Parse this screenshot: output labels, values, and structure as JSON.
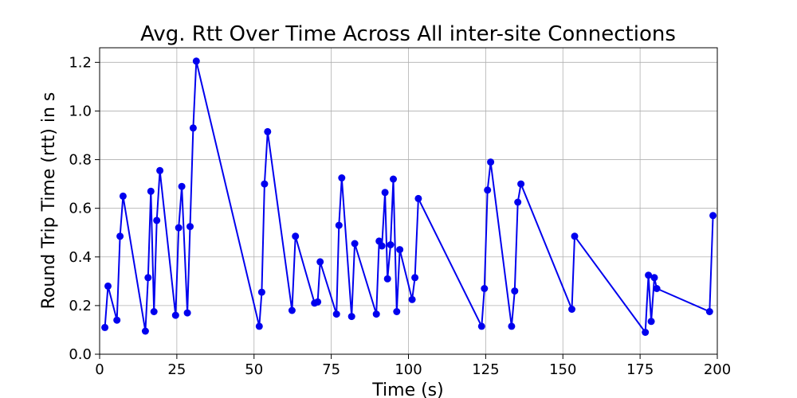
{
  "chart_data": {
    "type": "line",
    "title": "Avg. Rtt Over Time Across All inter-site Connections",
    "xlabel": "Time (s)",
    "ylabel": "Round Trip Time (rtt) in s",
    "xlim": [
      0,
      200
    ],
    "ylim": [
      0,
      1.26
    ],
    "xticks": [
      0,
      25,
      50,
      75,
      100,
      125,
      150,
      175,
      200
    ],
    "xtick_labels": [
      "0",
      "25",
      "50",
      "75",
      "100",
      "125",
      "150",
      "175",
      "200"
    ],
    "yticks": [
      0.0,
      0.2,
      0.4,
      0.6,
      0.8,
      1.0,
      1.2
    ],
    "ytick_labels": [
      "0.0",
      "0.2",
      "0.4",
      "0.6",
      "0.8",
      "1.0",
      "1.2"
    ],
    "grid": true,
    "color": "#0000ee",
    "series": [
      {
        "x": [
          1.7,
          2.7,
          5.6,
          6.6,
          7.6,
          14.8,
          15.7,
          16.6,
          17.6,
          18.5,
          19.5,
          24.6,
          25.6,
          26.6,
          28.4,
          29.3,
          30.3,
          31.3,
          51.7,
          52.5,
          53.4,
          54.4,
          62.3,
          63.4,
          69.6,
          70.6,
          71.4,
          76.7,
          77.5,
          78.4,
          81.6,
          82.6,
          89.6,
          90.5,
          91.4,
          92.4,
          93.2,
          94.2,
          95.1,
          96.2,
          97.2,
          101.2,
          102.1,
          103.2,
          123.7,
          124.6,
          125.6,
          126.6,
          133.4,
          134.4,
          135.4,
          136.4,
          152.9,
          153.8,
          176.7,
          177.7,
          178.6,
          179.6,
          180.4,
          197.5,
          198.6
        ],
        "y": [
          0.11,
          0.28,
          0.14,
          0.485,
          0.65,
          0.095,
          0.315,
          0.67,
          0.175,
          0.55,
          0.755,
          0.16,
          0.52,
          0.69,
          0.17,
          0.525,
          0.93,
          1.205,
          0.115,
          0.255,
          0.7,
          0.915,
          0.18,
          0.485,
          0.21,
          0.215,
          0.38,
          0.165,
          0.53,
          0.725,
          0.155,
          0.455,
          0.165,
          0.465,
          0.445,
          0.665,
          0.31,
          0.45,
          0.72,
          0.175,
          0.43,
          0.225,
          0.315,
          0.64,
          0.115,
          0.27,
          0.675,
          0.79,
          0.115,
          0.26,
          0.625,
          0.7,
          0.185,
          0.485,
          0.09,
          0.325,
          0.135,
          0.315,
          0.27,
          0.175,
          0.57
        ]
      }
    ]
  }
}
